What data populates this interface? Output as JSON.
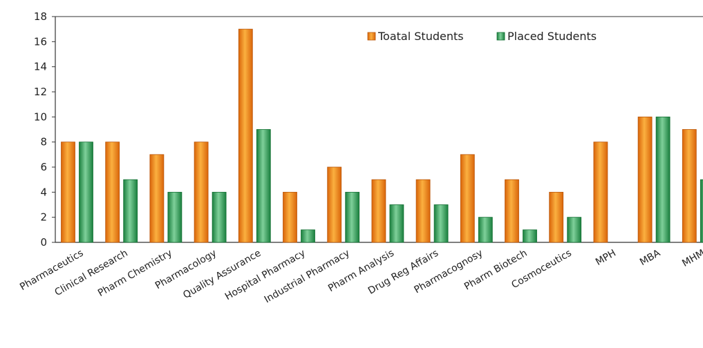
{
  "chart_data": {
    "type": "bar",
    "categories": [
      "Pharmaceutics",
      "Clinical Research",
      "Pharm Chemistry",
      "Pharmacology",
      "Quality Assurance",
      "Hospital Pharmacy",
      "Industrial Pharmacy",
      "Pharm Analysis",
      "Drug Reg Affairs",
      "Pharmacognosy",
      "Pharm Biotech",
      "Cosmoceutics",
      "MPH",
      "MBA",
      "MHM"
    ],
    "series": [
      {
        "name": "Toatal Students",
        "values": [
          8,
          8,
          7,
          8,
          17,
          4,
          6,
          5,
          5,
          7,
          5,
          4,
          8,
          10,
          9
        ],
        "color": "#f08a1c"
      },
      {
        "name": "Placed Students",
        "values": [
          8,
          5,
          4,
          4,
          9,
          1,
          4,
          3,
          3,
          2,
          1,
          2,
          0,
          10,
          5
        ],
        "color": "#2fa35c"
      }
    ],
    "ylim": [
      0,
      18
    ],
    "yticks": [
      0,
      2,
      4,
      6,
      8,
      10,
      12,
      14,
      16,
      18
    ],
    "grid": false,
    "legend_position": "top-right"
  }
}
